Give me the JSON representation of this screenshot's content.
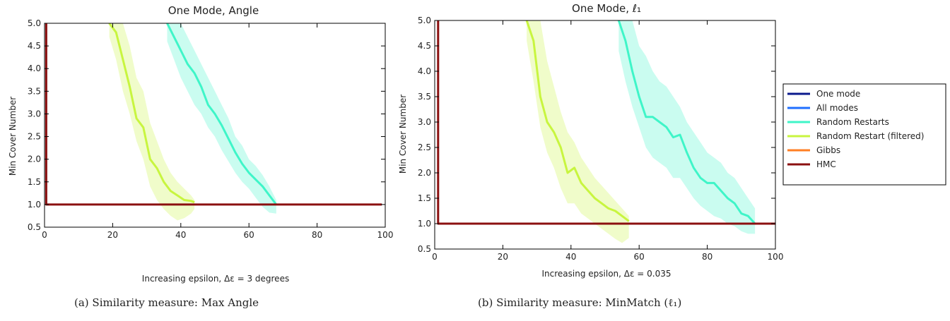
{
  "captions": [
    "(a) Similarity measure: Max Angle",
    "(b) Similarity measure: MinMatch (ℓ₁)"
  ],
  "legend": [
    {
      "label": "One mode",
      "color": "#0b1a8c"
    },
    {
      "label": "All modes",
      "color": "#1f6fff"
    },
    {
      "label": "Random Restarts",
      "color": "#3ff5c8"
    },
    {
      "label": "Random Restart (filtered)",
      "color": "#c8f53f"
    },
    {
      "label": "Gibbs",
      "color": "#ff7f24"
    },
    {
      "label": "HMC",
      "color": "#8b1010"
    }
  ],
  "chart_data": [
    {
      "type": "line",
      "title": "One Mode, Angle",
      "xlabel": "Increasing epsilon, Δε = 3 degrees",
      "ylabel": "Min Cover Number",
      "xlim": [
        0,
        100
      ],
      "ylim": [
        0.5,
        5.0
      ],
      "xticks": [
        "0",
        "20",
        "40",
        "60",
        "80",
        "100"
      ],
      "yticks": [
        "0.5",
        "1.0",
        "1.5",
        "2.0",
        "2.5",
        "3.0",
        "3.5",
        "4.0",
        "4.5",
        "5.0"
      ],
      "grid": false,
      "series": [
        {
          "name": "Random Restarts",
          "color": "#3ff5c8",
          "x": [
            36,
            38,
            40,
            42,
            44,
            46,
            48,
            50,
            52,
            54,
            56,
            58,
            60,
            62,
            64,
            66,
            68
          ],
          "y": [
            5.0,
            4.7,
            4.4,
            4.1,
            3.9,
            3.6,
            3.2,
            3.0,
            2.75,
            2.45,
            2.15,
            1.9,
            1.7,
            1.55,
            1.4,
            1.2,
            1.0
          ],
          "band_upper": [
            5.0,
            5.0,
            5.0,
            4.7,
            4.4,
            4.1,
            3.8,
            3.5,
            3.2,
            2.9,
            2.5,
            2.3,
            2.0,
            1.85,
            1.65,
            1.4,
            1.1
          ],
          "band_lower": [
            4.6,
            4.2,
            3.8,
            3.5,
            3.2,
            3.0,
            2.7,
            2.5,
            2.2,
            1.95,
            1.7,
            1.5,
            1.35,
            1.15,
            0.95,
            0.82,
            0.8
          ]
        },
        {
          "name": "Random Restart (filtered)",
          "color": "#c8f53f",
          "x": [
            19,
            21,
            23,
            25,
            27,
            29,
            31,
            33,
            35,
            37,
            39,
            41,
            43,
            44
          ],
          "y": [
            5.0,
            4.8,
            4.2,
            3.6,
            2.9,
            2.7,
            2.0,
            1.8,
            1.5,
            1.3,
            1.2,
            1.1,
            1.08,
            1.05
          ],
          "band_upper": [
            5.0,
            5.0,
            5.0,
            4.5,
            3.8,
            3.5,
            2.8,
            2.4,
            2.0,
            1.7,
            1.5,
            1.35,
            1.2,
            1.1
          ],
          "band_lower": [
            4.7,
            4.2,
            3.5,
            3.0,
            2.4,
            2.0,
            1.4,
            1.1,
            0.9,
            0.75,
            0.65,
            0.7,
            0.8,
            0.9
          ]
        },
        {
          "name": "HMC",
          "color": "#8b1010",
          "x": [
            0.5,
            0.5,
            1,
            99
          ],
          "y": [
            5.0,
            1.0,
            1.0,
            1.0
          ]
        }
      ]
    },
    {
      "type": "line",
      "title": "One Mode, ℓ₁",
      "xlabel": "Increasing epsilon, Δε = 0.035",
      "ylabel": "Min Cover Number",
      "xlim": [
        0,
        100
      ],
      "ylim": [
        0.5,
        5.0
      ],
      "xticks": [
        "0",
        "20",
        "40",
        "60",
        "80",
        "100"
      ],
      "yticks": [
        "0.5",
        "1.0",
        "1.5",
        "2.0",
        "2.5",
        "3.0",
        "3.5",
        "4.0",
        "4.5",
        "5.0"
      ],
      "grid": false,
      "series": [
        {
          "name": "Random Restarts",
          "color": "#3ff5c8",
          "x": [
            54,
            56,
            58,
            60,
            62,
            64,
            66,
            68,
            70,
            72,
            74,
            76,
            78,
            80,
            82,
            84,
            86,
            88,
            90,
            92,
            94
          ],
          "y": [
            5.0,
            4.6,
            4.0,
            3.5,
            3.1,
            3.1,
            3.0,
            2.9,
            2.7,
            2.75,
            2.4,
            2.1,
            1.9,
            1.8,
            1.8,
            1.65,
            1.5,
            1.4,
            1.2,
            1.15,
            1.0
          ],
          "band_upper": [
            5.0,
            5.0,
            5.0,
            4.5,
            4.3,
            4.0,
            3.8,
            3.7,
            3.5,
            3.3,
            3.0,
            2.8,
            2.6,
            2.4,
            2.3,
            2.2,
            2.0,
            1.9,
            1.7,
            1.5,
            1.3
          ],
          "band_lower": [
            4.4,
            3.8,
            3.3,
            2.9,
            2.5,
            2.3,
            2.2,
            2.1,
            1.9,
            1.9,
            1.7,
            1.5,
            1.35,
            1.25,
            1.15,
            1.1,
            1.0,
            0.95,
            0.85,
            0.8,
            0.8
          ]
        },
        {
          "name": "Random Restart (filtered)",
          "color": "#c8f53f",
          "x": [
            27,
            29,
            31,
            33,
            35,
            37,
            39,
            41,
            43,
            45,
            47,
            49,
            51,
            53,
            55,
            57
          ],
          "y": [
            5.0,
            4.6,
            3.5,
            3.0,
            2.8,
            2.5,
            2.0,
            2.1,
            1.8,
            1.65,
            1.5,
            1.4,
            1.3,
            1.25,
            1.15,
            1.05
          ],
          "band_upper": [
            5.0,
            5.0,
            5.0,
            4.2,
            3.7,
            3.2,
            2.8,
            2.6,
            2.3,
            2.1,
            1.9,
            1.75,
            1.6,
            1.45,
            1.3,
            1.15
          ],
          "band_lower": [
            4.6,
            3.8,
            2.9,
            2.4,
            2.1,
            1.7,
            1.4,
            1.4,
            1.2,
            1.1,
            1.0,
            0.9,
            0.8,
            0.7,
            0.62,
            0.72
          ]
        },
        {
          "name": "HMC",
          "color": "#8b1010",
          "x": [
            1,
            1,
            1.5,
            100
          ],
          "y": [
            5.0,
            1.0,
            1.0,
            1.0
          ]
        }
      ]
    }
  ]
}
